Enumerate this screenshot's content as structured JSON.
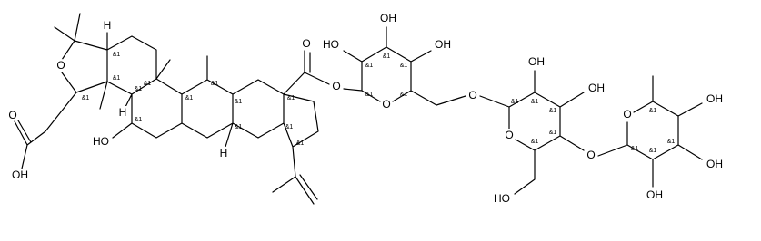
{
  "atom_labels": [
    "O",
    "O",
    "OH",
    "H",
    "H",
    "HO",
    "H",
    "O",
    "O",
    "HO",
    "OH",
    "OH",
    "O",
    "O",
    "OH",
    "OH",
    "O",
    "HO",
    "O",
    "O",
    "OH",
    "OH",
    "OH"
  ],
  "stereo_labels": [
    "&1",
    "&1",
    "&1",
    "&1",
    "&1",
    "&1",
    "&1",
    "&1",
    "&1",
    "&1",
    "&1",
    "&1",
    "&1",
    "&1",
    "&1",
    "&1",
    "&1",
    "&1",
    "&1",
    "&1",
    "&1",
    "&1",
    "&1",
    "&1",
    "&1",
    "&1",
    "&1"
  ]
}
